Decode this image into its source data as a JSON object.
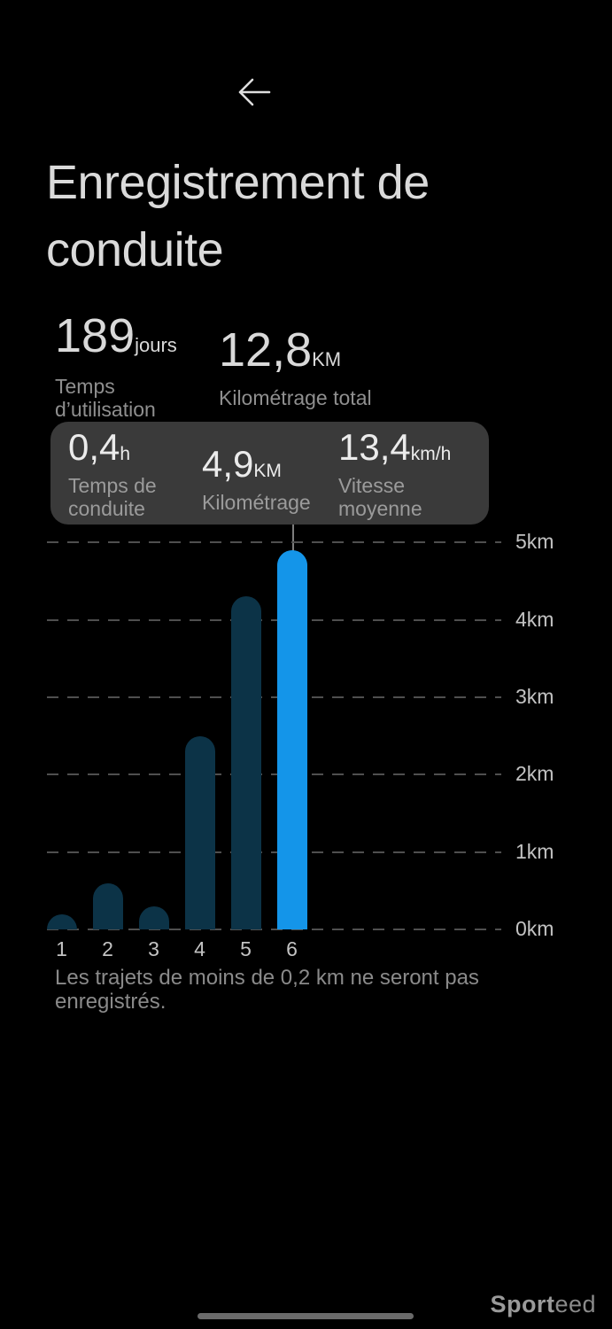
{
  "header": {
    "title": "Enregistrement de\nconduite"
  },
  "summary": {
    "usage": {
      "value": "189",
      "unit": "jours",
      "label": "Temps d’utilisation"
    },
    "total": {
      "value": "12,8",
      "unit": "KM",
      "label": "Kilométrage total"
    }
  },
  "tooltip": {
    "items": [
      {
        "value": "0,4",
        "unit": "h",
        "label": "Temps de conduite"
      },
      {
        "value": "4,9",
        "unit": "KM",
        "label": "Kilométrage"
      },
      {
        "value": "13,4",
        "unit": "km/h",
        "label": "Vitesse moyenne"
      }
    ]
  },
  "chart_data": {
    "type": "bar",
    "title": "",
    "xlabel": "",
    "ylabel": "",
    "categories": [
      "1",
      "2",
      "3",
      "4",
      "5",
      "6"
    ],
    "values": [
      0.2,
      0.6,
      0.3,
      2.5,
      4.3,
      4.9
    ],
    "selected_index": 5,
    "selected_value_km": "4,9",
    "y_ticks": [
      "0km",
      "1km",
      "2km",
      "3km",
      "4km",
      "5km"
    ],
    "ylim": [
      0,
      5
    ],
    "grid": "dashed horizontal",
    "legend": "none",
    "colors": {
      "bar": "#0c3347",
      "bar_selected": "#1495e9",
      "gridline": "#4f4f4f"
    }
  },
  "footer": {
    "note": "Les trajets de moins de 0,2 km ne seront pas\nenregistrés."
  },
  "watermark": {
    "bold": "Sport",
    "light": "eed"
  }
}
